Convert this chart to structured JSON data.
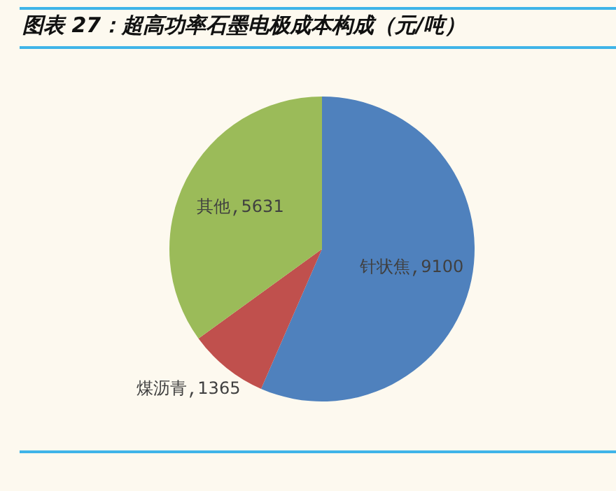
{
  "chart_data": {
    "type": "pie",
    "title": "图表 27：超高功率石墨电极成本构成（元/吨）",
    "categories": [
      "针状焦",
      "煤沥青",
      "其他"
    ],
    "values": [
      9100,
      1365,
      5631
    ],
    "colors": [
      "#4f81bd",
      "#c0504d",
      "#9bbb59"
    ],
    "data_labels": true,
    "legend": false
  }
}
